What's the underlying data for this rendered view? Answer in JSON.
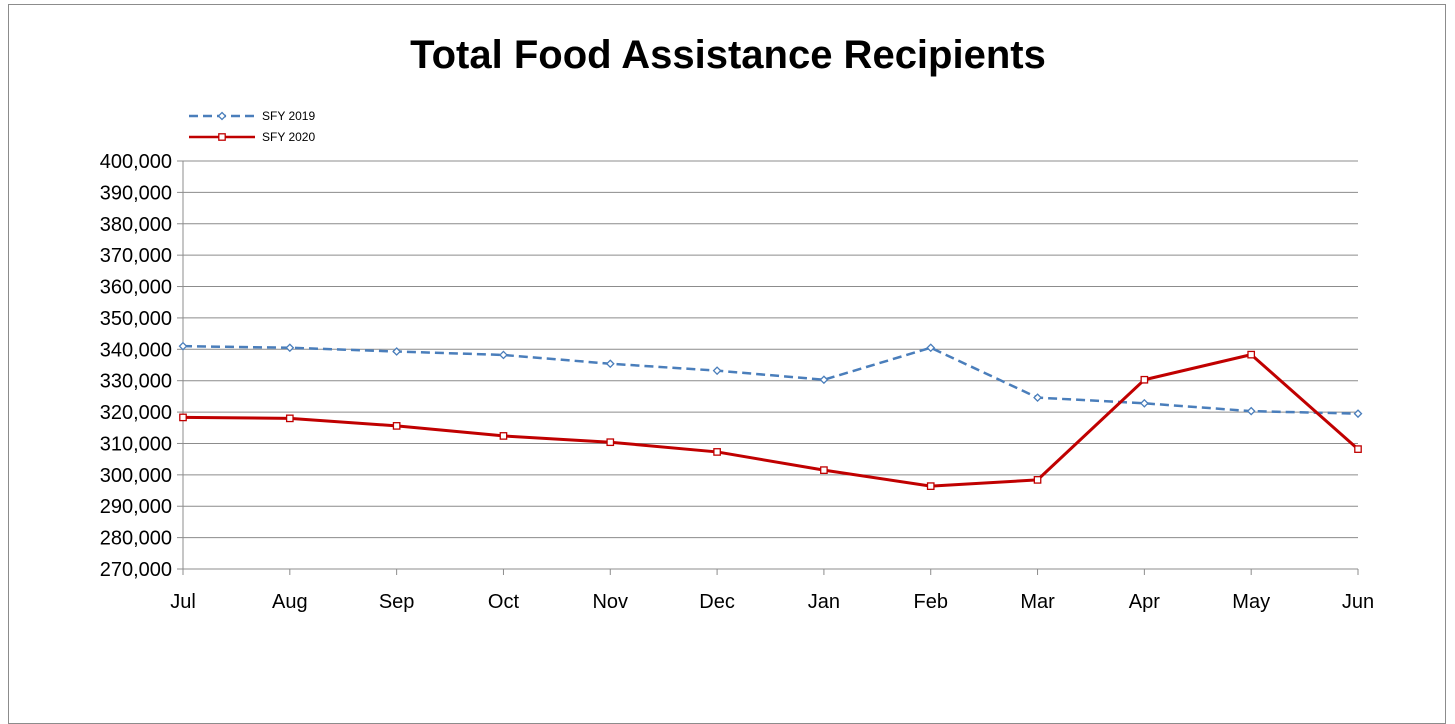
{
  "chart_data": {
    "type": "line",
    "title": "Total Food Assistance Recipients",
    "categories": [
      "Jul",
      "Aug",
      "Sep",
      "Oct",
      "Nov",
      "Dec",
      "Jan",
      "Feb",
      "Mar",
      "Apr",
      "May",
      "Jun"
    ],
    "ylim": [
      270000,
      400000
    ],
    "ytick_step": 10000,
    "ytick_labels": [
      "270,000",
      "280,000",
      "290,000",
      "300,000",
      "310,000",
      "320,000",
      "330,000",
      "340,000",
      "350,000",
      "360,000",
      "370,000",
      "380,000",
      "390,000",
      "400,000"
    ],
    "grid": true,
    "legend_position": "top-left",
    "series": [
      {
        "name": "SFY 2019",
        "color": "#4a7ebb",
        "line_style": "dashed",
        "marker": "diamond",
        "values": [
          341000,
          340500,
          339300,
          338200,
          335400,
          333200,
          330300,
          340500,
          324600,
          322800,
          320300,
          319500
        ]
      },
      {
        "name": "SFY 2020",
        "color": "#c00000",
        "line_style": "solid",
        "marker": "square",
        "values": [
          318300,
          318000,
          315600,
          312400,
          310400,
          307300,
          301500,
          296400,
          298400,
          330300,
          338300,
          308200
        ]
      }
    ]
  }
}
